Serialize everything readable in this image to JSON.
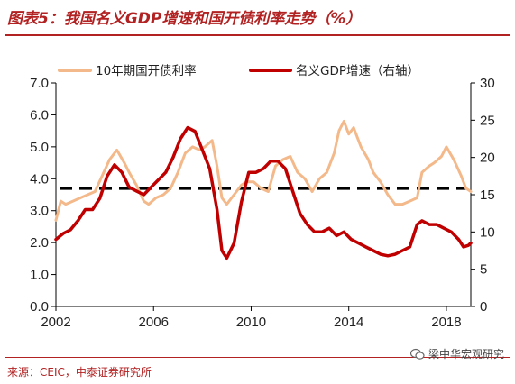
{
  "title": "图表5：我国名义GDP增速和国开债利率走势（%）",
  "source": "来源：CEIC，中泰证券研究所",
  "watermark": "梁中华宏观研究",
  "watermark_icon": "wechat-icon",
  "colors": {
    "bond": "#f4b98a",
    "gdp": "#c00000",
    "dashed": "#000000",
    "accent": "#b22222"
  },
  "chart_data": {
    "type": "line",
    "title": "",
    "xlabel": "",
    "ylabel": "",
    "xlim": [
      2002,
      2019
    ],
    "x_ticks": [
      2002,
      2006,
      2010,
      2014,
      2018
    ],
    "left_axis": {
      "range": [
        0,
        7
      ],
      "ticks": [
        "0.0",
        "1.0",
        "2.0",
        "3.0",
        "4.0",
        "5.0",
        "6.0",
        "7.0"
      ]
    },
    "right_axis": {
      "range": [
        0,
        30
      ],
      "ticks": [
        "0",
        "5",
        "10",
        "15",
        "20",
        "25",
        "30"
      ]
    },
    "reference_line": {
      "axis": "left",
      "value": 3.7,
      "style": "dashed"
    },
    "legend_position": "top",
    "series": [
      {
        "name": "10年期国开债利率",
        "axis": "left",
        "color": "#f4b98a",
        "points": [
          [
            2002.0,
            2.7
          ],
          [
            2002.2,
            3.3
          ],
          [
            2002.4,
            3.2
          ],
          [
            2002.7,
            3.3
          ],
          [
            2003.0,
            3.4
          ],
          [
            2003.3,
            3.5
          ],
          [
            2003.6,
            3.6
          ],
          [
            2003.9,
            4.1
          ],
          [
            2004.2,
            4.6
          ],
          [
            2004.5,
            4.9
          ],
          [
            2004.8,
            4.5
          ],
          [
            2005.0,
            4.2
          ],
          [
            2005.3,
            3.8
          ],
          [
            2005.6,
            3.3
          ],
          [
            2005.8,
            3.2
          ],
          [
            2006.1,
            3.4
          ],
          [
            2006.4,
            3.5
          ],
          [
            2006.7,
            3.7
          ],
          [
            2007.0,
            4.2
          ],
          [
            2007.3,
            4.8
          ],
          [
            2007.6,
            5.0
          ],
          [
            2007.9,
            4.9
          ],
          [
            2008.1,
            5.0
          ],
          [
            2008.4,
            5.2
          ],
          [
            2008.6,
            4.4
          ],
          [
            2008.8,
            3.4
          ],
          [
            2009.0,
            3.2
          ],
          [
            2009.3,
            3.5
          ],
          [
            2009.6,
            3.8
          ],
          [
            2009.8,
            3.9
          ],
          [
            2010.1,
            3.9
          ],
          [
            2010.4,
            3.7
          ],
          [
            2010.7,
            3.6
          ],
          [
            2011.0,
            4.4
          ],
          [
            2011.3,
            4.6
          ],
          [
            2011.6,
            4.7
          ],
          [
            2011.9,
            4.2
          ],
          [
            2012.2,
            4.0
          ],
          [
            2012.5,
            3.6
          ],
          [
            2012.8,
            4.0
          ],
          [
            2013.1,
            4.2
          ],
          [
            2013.4,
            4.8
          ],
          [
            2013.6,
            5.5
          ],
          [
            2013.8,
            5.8
          ],
          [
            2014.0,
            5.4
          ],
          [
            2014.2,
            5.6
          ],
          [
            2014.5,
            5.0
          ],
          [
            2014.8,
            4.6
          ],
          [
            2015.0,
            4.2
          ],
          [
            2015.3,
            3.9
          ],
          [
            2015.6,
            3.5
          ],
          [
            2015.9,
            3.2
          ],
          [
            2016.2,
            3.2
          ],
          [
            2016.5,
            3.3
          ],
          [
            2016.8,
            3.4
          ],
          [
            2017.0,
            4.2
          ],
          [
            2017.3,
            4.4
          ],
          [
            2017.5,
            4.5
          ],
          [
            2017.8,
            4.7
          ],
          [
            2018.0,
            5.0
          ],
          [
            2018.3,
            4.6
          ],
          [
            2018.6,
            4.1
          ],
          [
            2018.8,
            3.7
          ],
          [
            2019.0,
            3.6
          ]
        ]
      },
      {
        "name": "名义GDP增速（右轴）",
        "axis": "right",
        "color": "#c00000",
        "points": [
          [
            2002.0,
            9.0
          ],
          [
            2002.3,
            9.8
          ],
          [
            2002.6,
            10.3
          ],
          [
            2002.9,
            11.5
          ],
          [
            2003.2,
            13.0
          ],
          [
            2003.5,
            13.0
          ],
          [
            2003.8,
            14.5
          ],
          [
            2004.1,
            17.5
          ],
          [
            2004.4,
            19.0
          ],
          [
            2004.7,
            18.0
          ],
          [
            2005.0,
            16.0
          ],
          [
            2005.3,
            15.5
          ],
          [
            2005.6,
            15.0
          ],
          [
            2005.9,
            16.0
          ],
          [
            2006.2,
            17.0
          ],
          [
            2006.5,
            18.0
          ],
          [
            2006.8,
            20.0
          ],
          [
            2007.1,
            22.5
          ],
          [
            2007.4,
            24.0
          ],
          [
            2007.7,
            23.5
          ],
          [
            2008.0,
            21.0
          ],
          [
            2008.3,
            18.5
          ],
          [
            2008.6,
            13.0
          ],
          [
            2008.8,
            7.5
          ],
          [
            2009.0,
            6.5
          ],
          [
            2009.3,
            8.5
          ],
          [
            2009.6,
            14.0
          ],
          [
            2009.9,
            18.0
          ],
          [
            2010.2,
            18.0
          ],
          [
            2010.5,
            18.5
          ],
          [
            2010.8,
            19.5
          ],
          [
            2011.1,
            19.5
          ],
          [
            2011.4,
            18.5
          ],
          [
            2011.7,
            15.5
          ],
          [
            2012.0,
            12.5
          ],
          [
            2012.3,
            11.0
          ],
          [
            2012.6,
            10.0
          ],
          [
            2012.9,
            10.0
          ],
          [
            2013.2,
            10.5
          ],
          [
            2013.5,
            9.5
          ],
          [
            2013.8,
            10.0
          ],
          [
            2014.1,
            9.0
          ],
          [
            2014.4,
            8.5
          ],
          [
            2014.7,
            8.0
          ],
          [
            2015.0,
            7.5
          ],
          [
            2015.3,
            7.0
          ],
          [
            2015.6,
            6.8
          ],
          [
            2015.9,
            7.0
          ],
          [
            2016.2,
            7.5
          ],
          [
            2016.5,
            8.0
          ],
          [
            2016.8,
            11.0
          ],
          [
            2017.0,
            11.5
          ],
          [
            2017.3,
            11.0
          ],
          [
            2017.6,
            11.0
          ],
          [
            2017.9,
            10.5
          ],
          [
            2018.2,
            10.0
          ],
          [
            2018.5,
            9.0
          ],
          [
            2018.7,
            8.0
          ],
          [
            2018.9,
            8.2
          ],
          [
            2019.0,
            8.5
          ]
        ]
      }
    ]
  }
}
